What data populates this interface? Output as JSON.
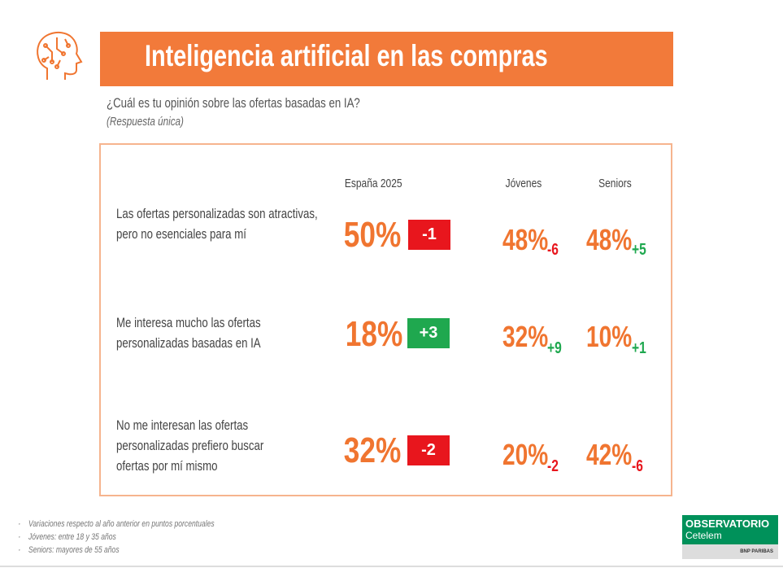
{
  "header": {
    "title": "Inteligencia artificial en las compras",
    "icon": "brain-head-icon",
    "accent": "#f27a3a"
  },
  "question": "¿Cuál es tu opinión sobre las ofertas basadas en IA?",
  "question_note": "(Respuesta única)",
  "columns": [
    "España 2025",
    "Jóvenes",
    "Seniors"
  ],
  "rows": [
    {
      "label": "Las ofertas personalizadas son atractivas, pero no esenciales para mí",
      "spain": "50%",
      "spain_delta": "-1",
      "spain_delta_color": "#e8161d",
      "jovenes": "48%",
      "jovenes_delta": "-6",
      "seniors": "48%",
      "seniors_delta": "+5"
    },
    {
      "label": "Me interesa mucho las ofertas personalizadas basadas en IA",
      "spain": "18%",
      "spain_delta": "+3",
      "spain_delta_color": "#1fa84f",
      "jovenes": "32%",
      "jovenes_delta": "+9",
      "seniors": "10%",
      "seniors_delta": "+1"
    },
    {
      "label": "No me interesan las ofertas personalizadas prefiero buscar ofertas por mí mismo",
      "spain": "32%",
      "spain_delta": "-2",
      "spain_delta_color": "#e8161d",
      "jovenes": "20%",
      "jovenes_delta": "-2",
      "seniors": "42%",
      "seniors_delta": "-6"
    }
  ],
  "footnotes": [
    "Variaciones respecto al año anterior en puntos porcentuales",
    "Jóvenes: entre 18 y 35 años",
    "Seniors: mayores de 55 años"
  ],
  "logo": {
    "line1": "OBSERVATORIO",
    "line2": "Cetelem",
    "line3": "BNP PARIBAS",
    "color": "#00915a"
  }
}
